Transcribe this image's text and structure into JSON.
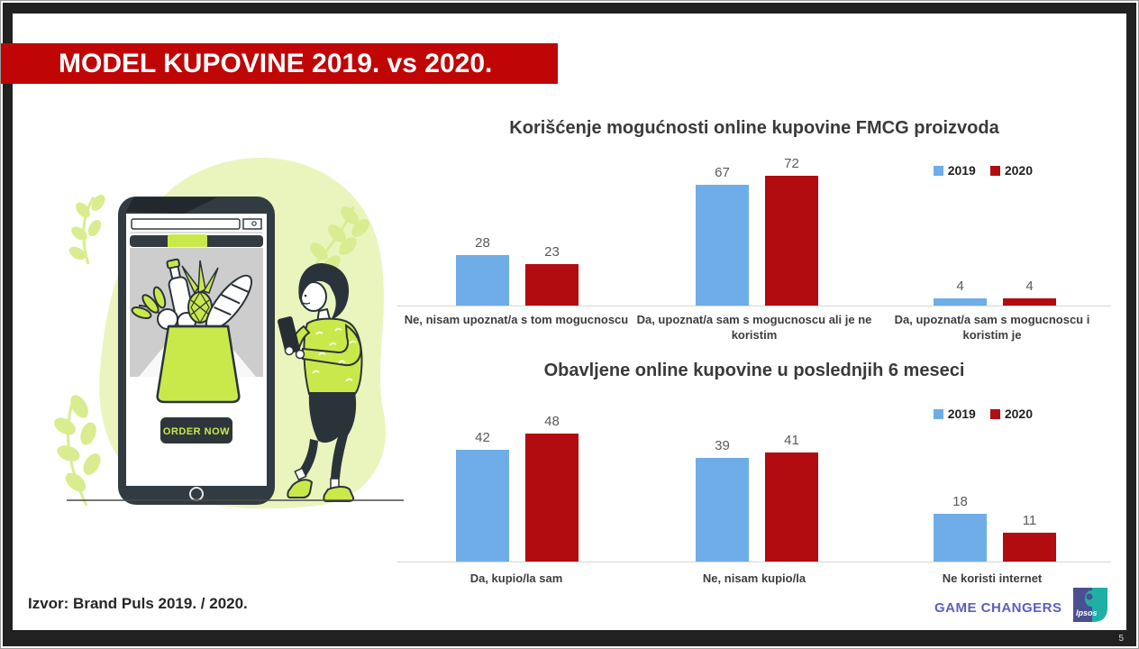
{
  "slide": {
    "title": "MODEL KUPOVINE 2019. vs 2020.",
    "source": "Izvor: Brand Puls 2019. / 2020.",
    "footer_brand": "GAME CHANGERS",
    "logo_text": "Ipsos",
    "page_number": "5"
  },
  "illustration": {
    "order_button_label": "ORDER NOW",
    "description": "person ordering groceries on a large phone"
  },
  "colors": {
    "banner_red": "#C00505",
    "bar_blue": "#6FADE8",
    "bar_red": "#B20B10",
    "lime": "#C9E94B",
    "ink": "#2B333A",
    "brand_purple": "#5A5EC8"
  },
  "chart_data": [
    {
      "type": "bar",
      "title": "Korišćenje mogućnosti online kupovine FMCG proizvoda",
      "categories": [
        "Ne, nisam upoznat/a s tom mogucnoscu",
        "Da, upoznat/a sam s mogucnoscu ali je ne koristim",
        "Da, upoznat/a sam s mogucnoscu i koristim je"
      ],
      "series": [
        {
          "name": "2019",
          "color": "#6FADE8",
          "values": [
            28,
            67,
            4
          ]
        },
        {
          "name": "2020",
          "color": "#B20B10",
          "values": [
            23,
            72,
            4
          ]
        }
      ],
      "ylim": [
        0,
        80
      ],
      "grid": false,
      "legend_position": "top-right",
      "data_labels": true
    },
    {
      "type": "bar",
      "title": "Obavljene online kupovine u poslednjih 6 meseci",
      "categories": [
        "Da, kupio/la sam",
        "Ne, nisam kupio/la",
        "Ne koristi internet"
      ],
      "series": [
        {
          "name": "2019",
          "color": "#6FADE8",
          "values": [
            42,
            39,
            18
          ]
        },
        {
          "name": "2020",
          "color": "#B20B10",
          "values": [
            48,
            41,
            11
          ]
        }
      ],
      "ylim": [
        0,
        55
      ],
      "grid": false,
      "legend_position": "top-right",
      "data_labels": true
    }
  ]
}
